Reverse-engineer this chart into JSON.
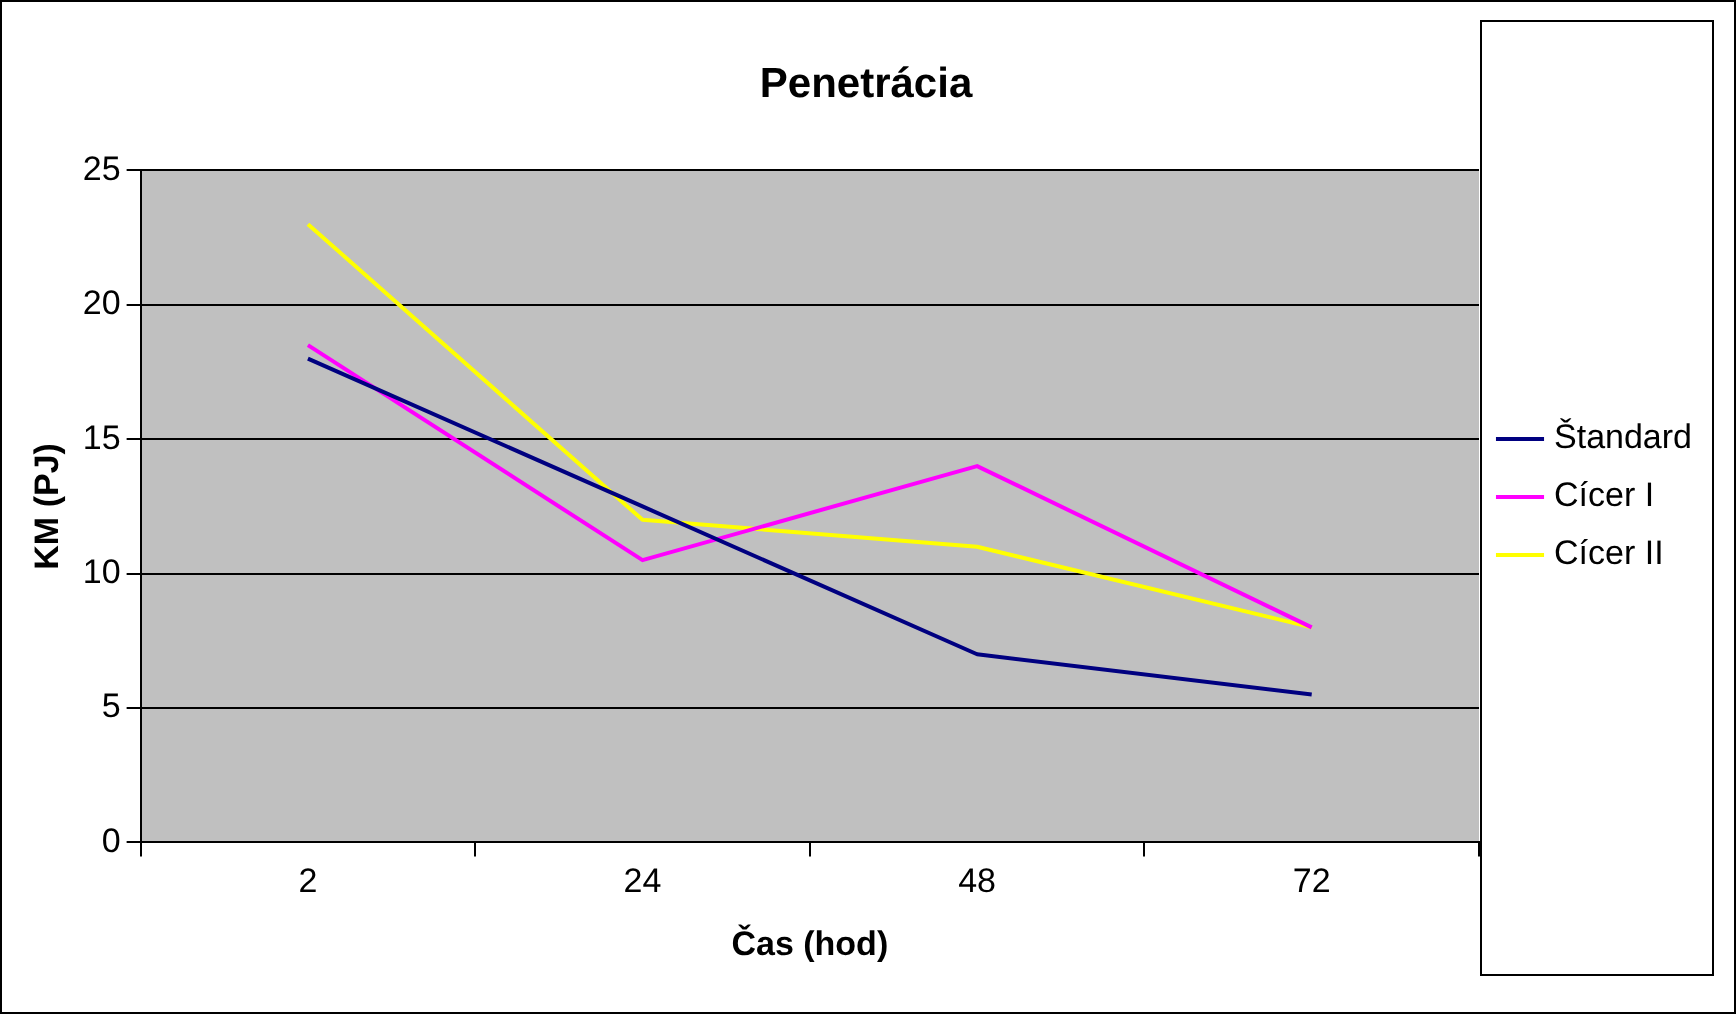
{
  "chart_data": {
    "type": "line",
    "title": "Penetrácia",
    "xlabel": "Čas (hod)",
    "ylabel": "KM (PJ)",
    "categories": [
      "2",
      "24",
      "48",
      "72"
    ],
    "series": [
      {
        "name": "Štandard",
        "color": "#000080",
        "values": [
          18,
          12.5,
          7,
          5.5
        ]
      },
      {
        "name": "Cícer I",
        "color": "#ff00ff",
        "values": [
          18.5,
          10.5,
          14,
          8
        ]
      },
      {
        "name": "Cícer II",
        "color": "#ffff00",
        "values": [
          23,
          12,
          11,
          8
        ]
      }
    ],
    "ylim": [
      0,
      25
    ],
    "yticks": [
      0,
      5,
      10,
      15,
      20,
      25
    ],
    "grid": "y",
    "legend": "right",
    "marker": "none",
    "line_style": "solid"
  }
}
